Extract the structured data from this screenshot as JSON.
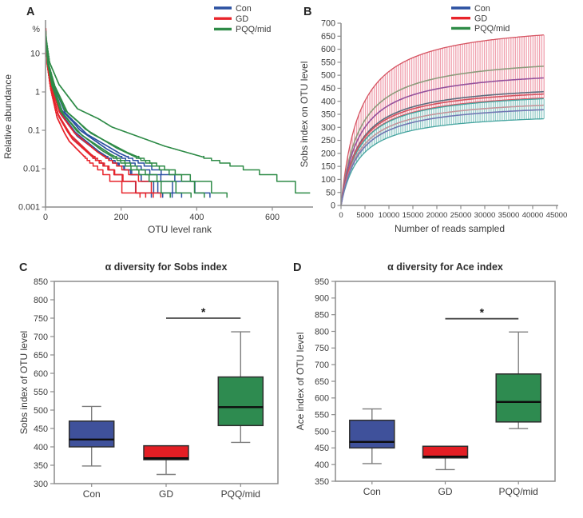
{
  "figure": {
    "background": "#ffffff",
    "groups": [
      {
        "name": "Con",
        "color": "#2b50a1"
      },
      {
        "name": "GD",
        "color": "#e8242b"
      },
      {
        "name": "PQQ/mid",
        "color": "#2e8b47"
      }
    ]
  },
  "chart_data": [
    {
      "panel_label": "A",
      "type": "line",
      "title": "",
      "xlabel": "OTU level rank",
      "ylabel": "Relative abundance",
      "y_unit": "%",
      "y_scale": "log",
      "y_ticks": [
        10,
        1,
        0.1,
        0.01,
        0.001
      ],
      "x_ticks": [
        0,
        200,
        400,
        600
      ],
      "x_max": 707,
      "abundance_floor_percent": 0.00233,
      "legend_position": "top-right",
      "legend": [
        {
          "name": "Con",
          "color": "#2b50a1"
        },
        {
          "name": "GD",
          "color": "#e8242b"
        },
        {
          "name": "PQQ/mid",
          "color": "#2e8b47"
        }
      ],
      "samples": [
        {
          "group": "Con",
          "max_rank": 280,
          "start_abundance": 28
        },
        {
          "group": "Con",
          "max_rank": 310,
          "start_abundance": 40
        },
        {
          "group": "Con",
          "max_rank": 335,
          "start_abundance": 22
        },
        {
          "group": "Con",
          "max_rank": 360,
          "start_abundance": 30
        },
        {
          "group": "Con",
          "max_rank": 435,
          "start_abundance": 26
        },
        {
          "group": "GD",
          "max_rank": 250,
          "start_abundance": 45
        },
        {
          "group": "GD",
          "max_rank": 265,
          "start_abundance": 30
        },
        {
          "group": "GD",
          "max_rank": 285,
          "start_abundance": 25
        },
        {
          "group": "GD",
          "max_rank": 305,
          "start_abundance": 35
        },
        {
          "group": "PQQ/mid",
          "max_rank": 330,
          "start_abundance": 32
        },
        {
          "group": "PQQ/mid",
          "max_rank": 385,
          "start_abundance": 24
        },
        {
          "group": "PQQ/mid",
          "max_rank": 420,
          "start_abundance": 38
        },
        {
          "group": "PQQ/mid",
          "max_rank": 480,
          "start_abundance": 28
        },
        {
          "group": "PQQ/mid",
          "max_rank": 700,
          "start_abundance": 30
        }
      ]
    },
    {
      "panel_label": "B",
      "type": "line",
      "title": "",
      "xlabel": "Number of reads sampled",
      "ylabel": "Sobs index on OTU level",
      "ylim": [
        0,
        700
      ],
      "y_step": 50,
      "xlim": [
        0,
        45000
      ],
      "x_step": 5000,
      "x_end": 42500,
      "legend_position": "top-right",
      "legend": [
        {
          "name": "Con",
          "color": "#2b50a1"
        },
        {
          "name": "GD",
          "color": "#e8242b"
        },
        {
          "name": "PQQ/mid",
          "color": "#2e8b47"
        }
      ],
      "error_bands": [
        {
          "bar_color": "#efa0ae",
          "edge_color": "#d65462",
          "top_end": 655,
          "bottom_end": 413
        },
        {
          "bar_color": "#92cac7",
          "edge_color": "#46a5a0",
          "top_end": 410,
          "bottom_end": 333
        }
      ],
      "mean_curves": [
        {
          "end": 535,
          "color": "#8d9b7c"
        },
        {
          "end": 490,
          "color": "#95519c"
        },
        {
          "end": 437,
          "color": "#5d6d7e"
        },
        {
          "end": 428,
          "color": "#d4535f"
        },
        {
          "end": 385,
          "color": "#c3949b"
        },
        {
          "end": 368,
          "color": "#7277b3"
        }
      ]
    },
    {
      "panel_label": "C",
      "type": "box",
      "title": "α diversity for Sobs index",
      "ylabel": "Sobs index of OTU level",
      "ylim": [
        300,
        850
      ],
      "y_step": 50,
      "categories": [
        "Con",
        "GD",
        "PQQ/mid"
      ],
      "boxes": [
        {
          "category": "Con",
          "color": "#3f519b",
          "min": 348,
          "q1": 400,
          "median": 420,
          "q3": 470,
          "max": 510
        },
        {
          "category": "GD",
          "color": "#e31e24",
          "min": 325,
          "q1": 365,
          "median": 369,
          "q3": 403,
          "max": 403
        },
        {
          "category": "PQQ/mid",
          "color": "#2e8b50",
          "min": 412,
          "q1": 458,
          "median": 508,
          "q3": 590,
          "max": 713
        }
      ],
      "significance": {
        "from": "GD",
        "to": "PQQ/mid",
        "y": 750,
        "label": "*"
      }
    },
    {
      "panel_label": "D",
      "type": "box",
      "title": "α diversity for Ace index",
      "ylabel": "Ace index of OTU level",
      "ylim": [
        350,
        950
      ],
      "y_step": 50,
      "categories": [
        "Con",
        "GD",
        "PQQ/mid"
      ],
      "boxes": [
        {
          "category": "Con",
          "color": "#3f519b",
          "min": 403,
          "q1": 450,
          "median": 468,
          "q3": 533,
          "max": 567
        },
        {
          "category": "GD",
          "color": "#e31e24",
          "min": 385,
          "q1": 420,
          "median": 424,
          "q3": 455,
          "max": 455
        },
        {
          "category": "PQQ/mid",
          "color": "#2e8b50",
          "min": 508,
          "q1": 528,
          "median": 588,
          "q3": 672,
          "max": 798
        }
      ],
      "significance": {
        "from": "GD",
        "to": "PQQ/mid",
        "y": 838,
        "label": "*"
      }
    }
  ]
}
